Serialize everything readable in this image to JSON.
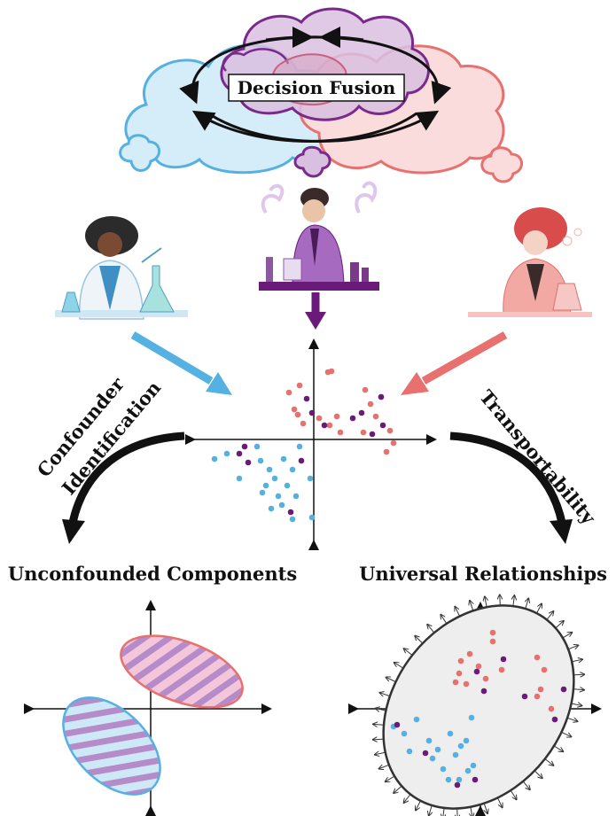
{
  "fusion": {
    "label": "Decision Fusion"
  },
  "left_arc_label": {
    "line1": "Confounder",
    "line2": "Identification"
  },
  "right_arc_label": {
    "text": "Transportability"
  },
  "bottom_left": {
    "title": "Unconfounded Components"
  },
  "bottom_right": {
    "title": "Universal Relationships"
  },
  "colors": {
    "blue": "#56b1e3",
    "purple": "#6a1b7a",
    "red": "#e8706e",
    "stripe_purple": "#b58bc9"
  },
  "icons": [
    "scientist-blue-icon",
    "scientist-purple-icon",
    "scientist-red-icon",
    "cloud-icon"
  ]
}
